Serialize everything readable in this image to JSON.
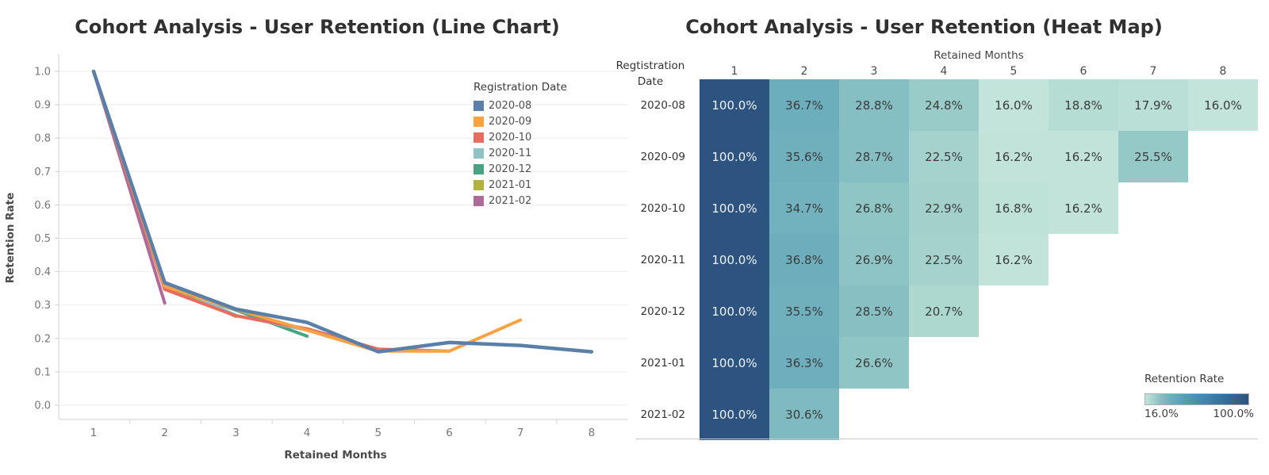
{
  "line_chart": {
    "title": "Cohort Analysis - User Retention (Line Chart)",
    "xlabel": "Retained Months",
    "ylabel": "Retention Rate",
    "legend_title": "Registration Date",
    "x_ticks": [
      "1",
      "2",
      "3",
      "4",
      "5",
      "6",
      "7",
      "8"
    ],
    "y_ticks": [
      "1.0",
      "0.9",
      "0.8",
      "0.7",
      "0.6",
      "0.5",
      "0.4",
      "0.3",
      "0.2",
      "0.1",
      "0.0"
    ]
  },
  "heat_map": {
    "title": "Cohort Analysis - User Retention (Heat Map)",
    "col_header_title": "Retained Months",
    "row_header_line1": "Regtistration",
    "row_header_line2": "Date",
    "columns": [
      "1",
      "2",
      "3",
      "4",
      "5",
      "6",
      "7",
      "8"
    ],
    "legend": {
      "title": "Retention Rate",
      "min_label": "16.0%",
      "max_label": "100.0%"
    }
  },
  "chart_data": [
    {
      "type": "line",
      "title": "Cohort Analysis - User Retention (Line Chart)",
      "xlabel": "Retained Months",
      "ylabel": "Retention Rate",
      "x": [
        1,
        2,
        3,
        4,
        5,
        6,
        7,
        8
      ],
      "xlim": [
        0.5,
        8.5
      ],
      "ylim": [
        0,
        1.05
      ],
      "grid": "horizontal",
      "legend_title": "Registration Date",
      "legend_position": "upper-right-inside",
      "series": [
        {
          "name": "2020-08",
          "color": "#5a7fa9",
          "values": [
            1.0,
            0.367,
            0.288,
            0.248,
            0.16,
            0.188,
            0.179,
            0.16
          ]
        },
        {
          "name": "2020-09",
          "color": "#f9a242",
          "values": [
            1.0,
            0.356,
            0.287,
            0.225,
            0.162,
            0.162,
            0.255
          ]
        },
        {
          "name": "2020-10",
          "color": "#e96a5e",
          "values": [
            1.0,
            0.347,
            0.268,
            0.229,
            0.168,
            0.162
          ]
        },
        {
          "name": "2020-11",
          "color": "#8fc3c6",
          "values": [
            1.0,
            0.368,
            0.269,
            0.225,
            0.162
          ]
        },
        {
          "name": "2020-12",
          "color": "#49a283",
          "values": [
            1.0,
            0.355,
            0.285,
            0.207
          ]
        },
        {
          "name": "2021-01",
          "color": "#b2b33e",
          "values": [
            1.0,
            0.363,
            0.266
          ]
        },
        {
          "name": "2021-02",
          "color": "#af6a99",
          "values": [
            1.0,
            0.306
          ]
        }
      ]
    },
    {
      "type": "heatmap",
      "title": "Cohort Analysis - User Retention (Heat Map)",
      "xlabel": "Retained Months",
      "ylabel": "Regtistration Date",
      "columns": [
        1,
        2,
        3,
        4,
        5,
        6,
        7,
        8
      ],
      "rows": [
        "2020-08",
        "2020-09",
        "2020-10",
        "2020-11",
        "2020-12",
        "2021-01",
        "2021-02"
      ],
      "values_pct": [
        [
          100.0,
          36.7,
          28.8,
          24.8,
          16.0,
          18.8,
          17.9,
          16.0
        ],
        [
          100.0,
          35.6,
          28.7,
          22.5,
          16.2,
          16.2,
          25.5,
          null
        ],
        [
          100.0,
          34.7,
          26.8,
          22.9,
          16.8,
          16.2,
          null,
          null
        ],
        [
          100.0,
          36.8,
          26.9,
          22.5,
          16.2,
          null,
          null,
          null
        ],
        [
          100.0,
          35.5,
          28.5,
          20.7,
          null,
          null,
          null,
          null
        ],
        [
          100.0,
          36.3,
          26.6,
          null,
          null,
          null,
          null,
          null
        ],
        [
          100.0,
          30.6,
          null,
          null,
          null,
          null,
          null,
          null
        ]
      ],
      "color_scale": {
        "title": "Retention Rate",
        "min": 16.0,
        "max": 100.0,
        "min_label": "16.0%",
        "max_label": "100.0%",
        "gradient_stops": [
          [
            0.0,
            "#c2e4da"
          ],
          [
            0.05,
            "#aed9d1"
          ],
          [
            0.1,
            "#9bcdc9"
          ],
          [
            0.145,
            "#88c0c3"
          ],
          [
            0.2,
            "#77b5c0"
          ],
          [
            0.25,
            "#6cadbc"
          ],
          [
            0.45,
            "#5093b6"
          ],
          [
            0.7,
            "#3a76a0"
          ],
          [
            1.0,
            "#2d5480"
          ]
        ]
      }
    }
  ]
}
